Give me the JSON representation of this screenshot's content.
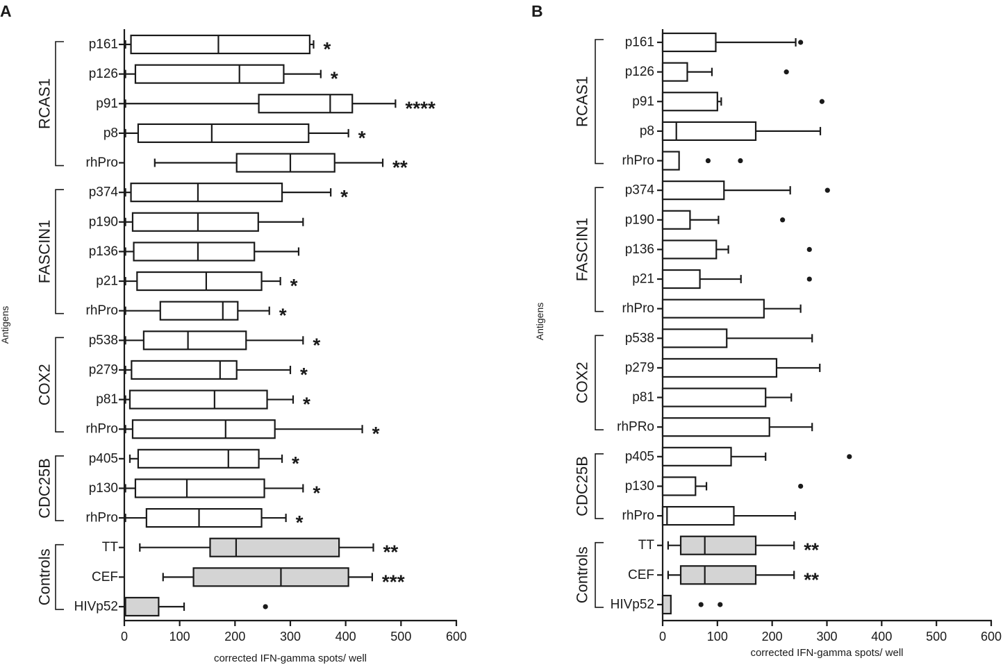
{
  "chart_data": [
    {
      "panel": "A",
      "type": "boxplot",
      "orientation": "horizontal",
      "xlabel": "corrected IFN-gamma spots/ well",
      "ylabel": "Antigens",
      "xlim": [
        0,
        600
      ],
      "xticks": [
        "0",
        "100",
        "200",
        "300",
        "400",
        "500",
        "600"
      ],
      "groups": [
        {
          "name": "RCAS1",
          "start": 0,
          "end": 4
        },
        {
          "name": "FASCIN1",
          "start": 5,
          "end": 9
        },
        {
          "name": "COX2",
          "start": 10,
          "end": 13
        },
        {
          "name": "CDC25B",
          "start": 14,
          "end": 16
        },
        {
          "name": "Controls",
          "start": 17,
          "end": 19
        }
      ],
      "rows": [
        {
          "label": "p161",
          "min": 2,
          "q1": 12,
          "median": 170,
          "q3": 335,
          "max": 342,
          "fill": "white",
          "sig": "*",
          "outliers": []
        },
        {
          "label": "p126",
          "min": 2,
          "q1": 20,
          "median": 208,
          "q3": 288,
          "max": 355,
          "fill": "white",
          "sig": "*",
          "outliers": []
        },
        {
          "label": "p91",
          "min": 2,
          "q1": 243,
          "median": 372,
          "q3": 412,
          "max": 490,
          "fill": "white",
          "sig": "****",
          "outliers": []
        },
        {
          "label": "p8",
          "min": 2,
          "q1": 25,
          "median": 158,
          "q3": 333,
          "max": 405,
          "fill": "white",
          "sig": "*",
          "outliers": []
        },
        {
          "label": "rhPro",
          "min": 55,
          "q1": 203,
          "median": 300,
          "q3": 380,
          "max": 467,
          "fill": "white",
          "sig": "**",
          "outliers": []
        },
        {
          "label": "p374",
          "min": 2,
          "q1": 12,
          "median": 133,
          "q3": 285,
          "max": 373,
          "fill": "white",
          "sig": "*",
          "outliers": []
        },
        {
          "label": "p190",
          "min": 2,
          "q1": 15,
          "median": 133,
          "q3": 242,
          "max": 323,
          "fill": "white",
          "sig": "",
          "outliers": []
        },
        {
          "label": "p136",
          "min": 2,
          "q1": 17,
          "median": 133,
          "q3": 235,
          "max": 315,
          "fill": "white",
          "sig": "",
          "outliers": []
        },
        {
          "label": "p21",
          "min": 2,
          "q1": 23,
          "median": 148,
          "q3": 248,
          "max": 282,
          "fill": "white",
          "sig": "*",
          "outliers": []
        },
        {
          "label": "rhPro",
          "min": 2,
          "q1": 65,
          "median": 178,
          "q3": 205,
          "max": 262,
          "fill": "white",
          "sig": "*",
          "outliers": []
        },
        {
          "label": "p538",
          "min": 2,
          "q1": 35,
          "median": 115,
          "q3": 220,
          "max": 323,
          "fill": "white",
          "sig": "*",
          "outliers": []
        },
        {
          "label": "p279",
          "min": 2,
          "q1": 13,
          "median": 173,
          "q3": 203,
          "max": 300,
          "fill": "white",
          "sig": "*",
          "outliers": []
        },
        {
          "label": "p81",
          "min": 2,
          "q1": 10,
          "median": 163,
          "q3": 258,
          "max": 305,
          "fill": "white",
          "sig": "*",
          "outliers": []
        },
        {
          "label": "rhPro",
          "min": 2,
          "q1": 15,
          "median": 183,
          "q3": 272,
          "max": 430,
          "fill": "white",
          "sig": "*",
          "outliers": []
        },
        {
          "label": "p405",
          "min": 10,
          "q1": 25,
          "median": 188,
          "q3": 243,
          "max": 285,
          "fill": "white",
          "sig": "*",
          "outliers": []
        },
        {
          "label": "p130",
          "min": 2,
          "q1": 20,
          "median": 113,
          "q3": 253,
          "max": 323,
          "fill": "white",
          "sig": "*",
          "outliers": []
        },
        {
          "label": "rhPro",
          "min": 2,
          "q1": 40,
          "median": 135,
          "q3": 248,
          "max": 292,
          "fill": "white",
          "sig": "*",
          "outliers": []
        },
        {
          "label": "TT",
          "min": 28,
          "q1": 155,
          "median": 202,
          "q3": 388,
          "max": 450,
          "fill": "grey",
          "sig": "**",
          "outliers": []
        },
        {
          "label": "CEF",
          "min": 70,
          "q1": 125,
          "median": 283,
          "q3": 405,
          "max": 448,
          "fill": "grey",
          "sig": "***",
          "outliers": []
        },
        {
          "label": "HIVp52",
          "min": 2,
          "q1": 2,
          "median": 2,
          "q3": 62,
          "max": 108,
          "fill": "grey",
          "sig": "",
          "outliers": [
            255
          ]
        }
      ]
    },
    {
      "panel": "B",
      "type": "boxplot",
      "orientation": "horizontal",
      "xlabel": "corrected IFN-gamma spots/ well",
      "ylabel": "Antigens",
      "xlim": [
        0,
        600
      ],
      "xticks": [
        "0",
        "100",
        "200",
        "300",
        "400",
        "500",
        "600"
      ],
      "groups": [
        {
          "name": "RCAS1",
          "start": 0,
          "end": 4
        },
        {
          "name": "FASCIN1",
          "start": 5,
          "end": 9
        },
        {
          "name": "COX2",
          "start": 10,
          "end": 13
        },
        {
          "name": "CDC25B",
          "start": 14,
          "end": 16
        },
        {
          "name": "Controls",
          "start": 17,
          "end": 19
        }
      ],
      "rows": [
        {
          "label": "p161",
          "min": 0,
          "q1": 0,
          "median": 0,
          "q3": 97,
          "max": 243,
          "fill": "white",
          "sig": "",
          "outliers": [
            252
          ]
        },
        {
          "label": "p126",
          "min": 0,
          "q1": 0,
          "median": 0,
          "q3": 45,
          "max": 90,
          "fill": "white",
          "sig": "",
          "outliers": [
            226
          ]
        },
        {
          "label": "p91",
          "min": 0,
          "q1": 0,
          "median": 0,
          "q3": 100,
          "max": 107,
          "fill": "white",
          "sig": "",
          "outliers": [
            291
          ]
        },
        {
          "label": "p8",
          "min": 0,
          "q1": 0,
          "median": 25,
          "q3": 170,
          "max": 288,
          "fill": "white",
          "sig": "",
          "outliers": []
        },
        {
          "label": "rhPro",
          "min": 0,
          "q1": 0,
          "median": 0,
          "q3": 30,
          "max": 30,
          "fill": "white",
          "sig": "",
          "outliers": [
            83,
            142
          ]
        },
        {
          "label": "p374",
          "min": 0,
          "q1": 0,
          "median": 0,
          "q3": 112,
          "max": 233,
          "fill": "white",
          "sig": "",
          "outliers": [
            301
          ]
        },
        {
          "label": "p190",
          "min": 0,
          "q1": 0,
          "median": 0,
          "q3": 50,
          "max": 102,
          "fill": "white",
          "sig": "",
          "outliers": [
            219
          ]
        },
        {
          "label": "p136",
          "min": 0,
          "q1": 0,
          "median": 0,
          "q3": 98,
          "max": 120,
          "fill": "white",
          "sig": "",
          "outliers": [
            268
          ]
        },
        {
          "label": "p21",
          "min": 0,
          "q1": 0,
          "median": 0,
          "q3": 68,
          "max": 143,
          "fill": "white",
          "sig": "",
          "outliers": [
            268
          ]
        },
        {
          "label": "rhPro",
          "min": 0,
          "q1": 0,
          "median": 0,
          "q3": 185,
          "max": 252,
          "fill": "white",
          "sig": "",
          "outliers": []
        },
        {
          "label": "p538",
          "min": 0,
          "q1": 0,
          "median": 0,
          "q3": 117,
          "max": 273,
          "fill": "white",
          "sig": "",
          "outliers": []
        },
        {
          "label": "p279",
          "min": 0,
          "q1": 0,
          "median": 0,
          "q3": 208,
          "max": 287,
          "fill": "white",
          "sig": "",
          "outliers": []
        },
        {
          "label": "p81",
          "min": 0,
          "q1": 0,
          "median": 0,
          "q3": 188,
          "max": 235,
          "fill": "white",
          "sig": "",
          "outliers": []
        },
        {
          "label": "rhPRo",
          "min": 0,
          "q1": 0,
          "median": 0,
          "q3": 195,
          "max": 273,
          "fill": "white",
          "sig": "",
          "outliers": []
        },
        {
          "label": "p405",
          "min": 0,
          "q1": 0,
          "median": 0,
          "q3": 125,
          "max": 188,
          "fill": "white",
          "sig": "",
          "outliers": [
            341
          ]
        },
        {
          "label": "p130",
          "min": 0,
          "q1": 0,
          "median": 0,
          "q3": 60,
          "max": 80,
          "fill": "white",
          "sig": "",
          "outliers": [
            252
          ]
        },
        {
          "label": "rhPro",
          "min": 0,
          "q1": 0,
          "median": 8,
          "q3": 130,
          "max": 242,
          "fill": "white",
          "sig": "",
          "outliers": []
        },
        {
          "label": "TT",
          "min": 10,
          "q1": 33,
          "median": 77,
          "q3": 170,
          "max": 240,
          "fill": "grey",
          "sig": "**",
          "outliers": []
        },
        {
          "label": "CEF",
          "min": 10,
          "q1": 33,
          "median": 77,
          "q3": 170,
          "max": 240,
          "fill": "grey",
          "sig": "**",
          "outliers": []
        },
        {
          "label": "HIVp52",
          "min": 0,
          "q1": 0,
          "median": 0,
          "q3": 15,
          "max": 15,
          "fill": "grey",
          "sig": "",
          "outliers": [
            70,
            105
          ]
        }
      ]
    }
  ],
  "colors": {
    "stroke": "#1a1a1a",
    "grey_fill": "#d4d4d4",
    "white_fill": "#ffffff"
  }
}
